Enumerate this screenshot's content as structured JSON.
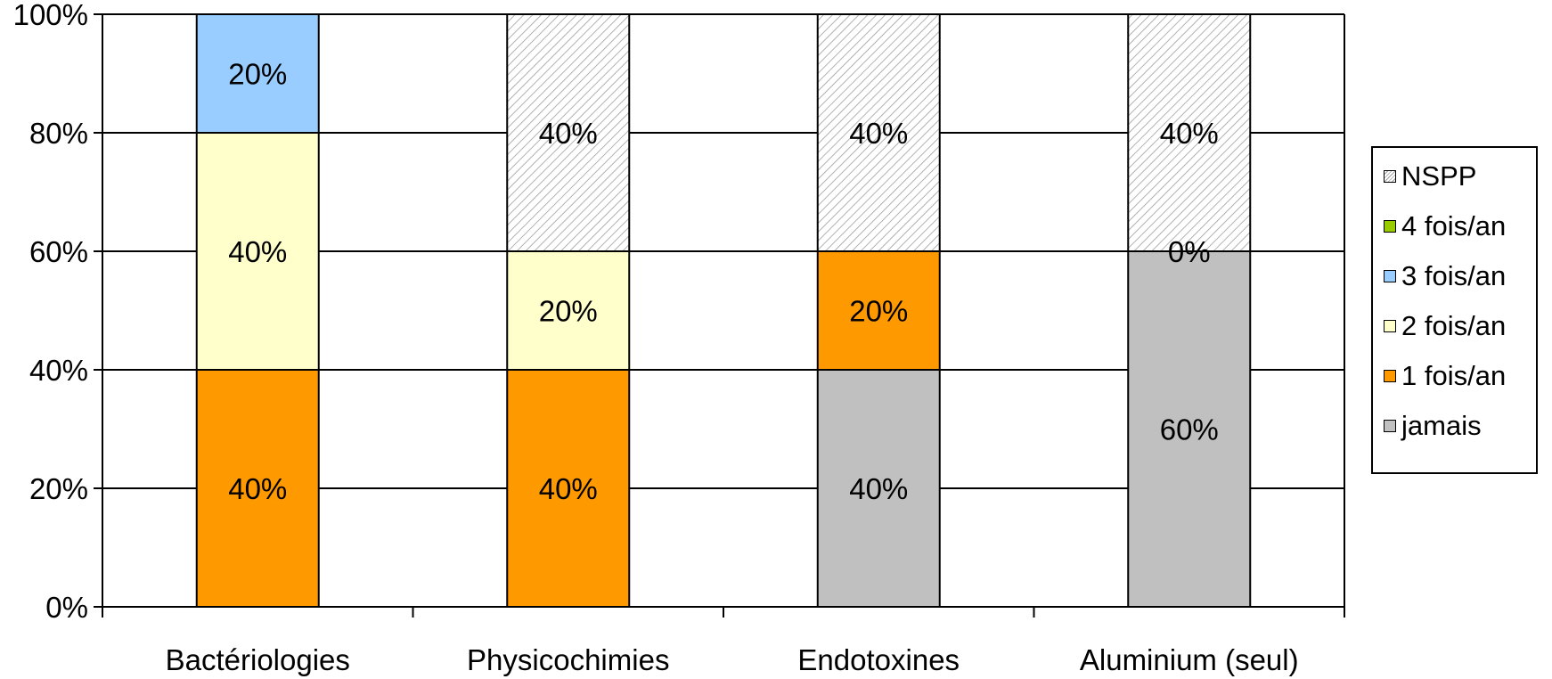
{
  "chart_data": {
    "type": "bar",
    "stacked": true,
    "percent": true,
    "categories": [
      "Bactériologies",
      "Physicochimies",
      "Endotoxines",
      "Aluminium (seul)"
    ],
    "series": [
      {
        "name": "jamais",
        "color": "#c0c0c0",
        "values": [
          0,
          0,
          40,
          60
        ],
        "labels": [
          "",
          "",
          "40%",
          "60%"
        ]
      },
      {
        "name": "1 fois/an",
        "color": "#ff9900",
        "values": [
          40,
          40,
          20,
          0
        ],
        "labels": [
          "40%",
          "40%",
          "20%",
          ""
        ]
      },
      {
        "name": "2 fois/an",
        "color": "#ffffcc",
        "values": [
          40,
          20,
          0,
          0
        ],
        "labels": [
          "40%",
          "20%",
          "",
          ""
        ]
      },
      {
        "name": "3 fois/an",
        "color": "#99ccff",
        "values": [
          20,
          0,
          0,
          0
        ],
        "labels": [
          "20%",
          "",
          "",
          ""
        ]
      },
      {
        "name": "4 fois/an",
        "color": "#99cc00",
        "values": [
          0,
          0,
          0,
          0
        ],
        "labels": [
          "",
          "",
          "",
          "0%"
        ]
      },
      {
        "name": "NSPP",
        "color": "#ffffff",
        "pattern": "hatched",
        "values": [
          0,
          40,
          40,
          40
        ],
        "labels": [
          "",
          "40%",
          "40%",
          "40%"
        ]
      }
    ],
    "yticks": [
      "0%",
      "20%",
      "40%",
      "60%",
      "80%",
      "100%"
    ],
    "ylim": [
      0,
      100
    ],
    "grid": true,
    "legend_position": "right",
    "legend_order": [
      "NSPP",
      "4 fois/an",
      "3 fois/an",
      "2 fois/an",
      "1 fois/an",
      "jamais"
    ]
  }
}
